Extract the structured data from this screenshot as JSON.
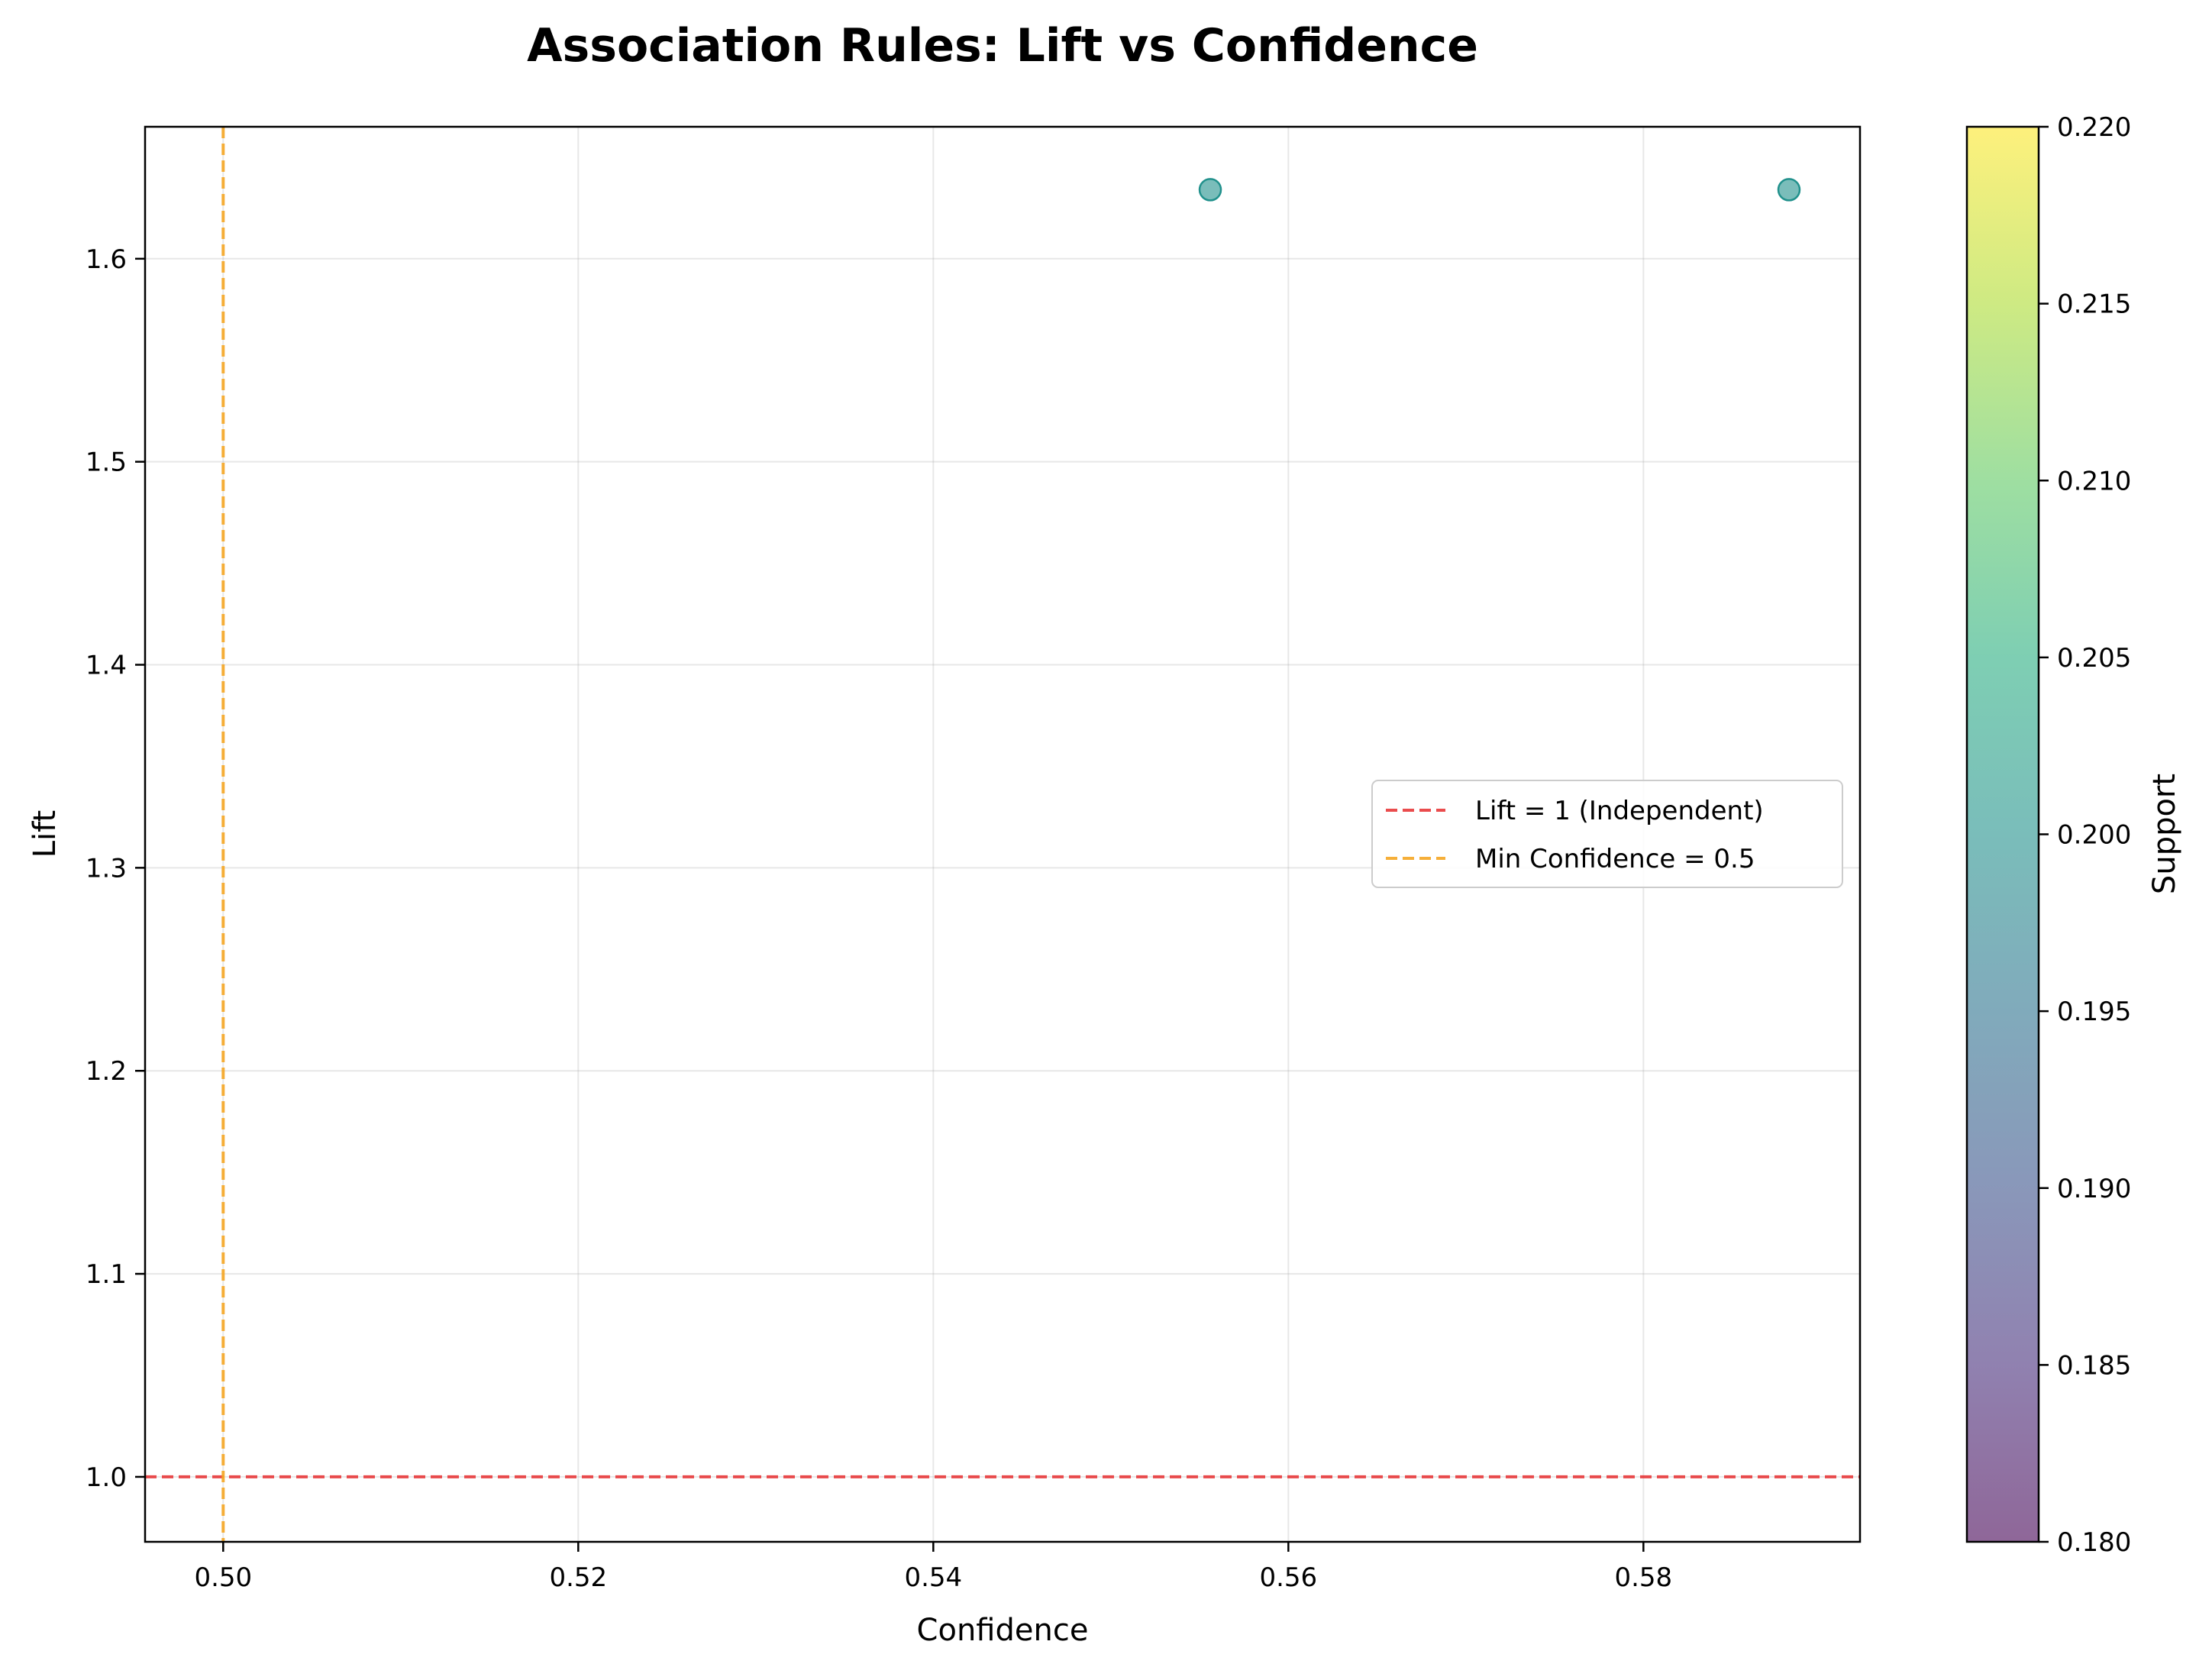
{
  "chart_data": {
    "type": "scatter",
    "title": "Association Rules: Lift vs Confidence",
    "xlabel": "Confidence",
    "ylabel": "Lift",
    "xlim": [
      0.4956,
      0.5922
    ],
    "ylim": [
      0.968,
      1.665
    ],
    "x_ticks": [
      0.5,
      0.52,
      0.54,
      0.56,
      0.58
    ],
    "x_tick_labels": [
      "0.50",
      "0.52",
      "0.54",
      "0.56",
      "0.58"
    ],
    "y_ticks": [
      1.0,
      1.1,
      1.2,
      1.3,
      1.4,
      1.5,
      1.6
    ],
    "y_tick_labels": [
      "1.0",
      "1.1",
      "1.2",
      "1.3",
      "1.4",
      "1.5",
      "1.6"
    ],
    "grid": true,
    "points": [
      {
        "confidence": 0.5556,
        "lift": 1.634,
        "support": 0.2
      },
      {
        "confidence": 0.5882,
        "lift": 1.634,
        "support": 0.2
      }
    ],
    "reference_lines": [
      {
        "orientation": "horizontal",
        "value": 1.0,
        "label": "Lift = 1 (Independent)",
        "color": "#e8393a",
        "style": "dashed"
      },
      {
        "orientation": "vertical",
        "value": 0.5,
        "label": "Min Confidence = 0.5",
        "color": "#f5a623",
        "style": "dashed"
      }
    ],
    "legend": {
      "placement": "center-right",
      "entries": [
        "Lift = 1 (Independent)",
        "Min Confidence = 0.5"
      ]
    },
    "colorbar": {
      "label": "Support",
      "colormap": "viridis",
      "range": [
        0.18,
        0.22
      ],
      "ticks": [
        0.18,
        0.185,
        0.19,
        0.195,
        0.2,
        0.205,
        0.21,
        0.215,
        0.22
      ],
      "tick_labels": [
        "0.180",
        "0.185",
        "0.190",
        "0.195",
        "0.200",
        "0.205",
        "0.210",
        "0.215",
        "0.220"
      ]
    },
    "marker_alpha": 0.6
  }
}
